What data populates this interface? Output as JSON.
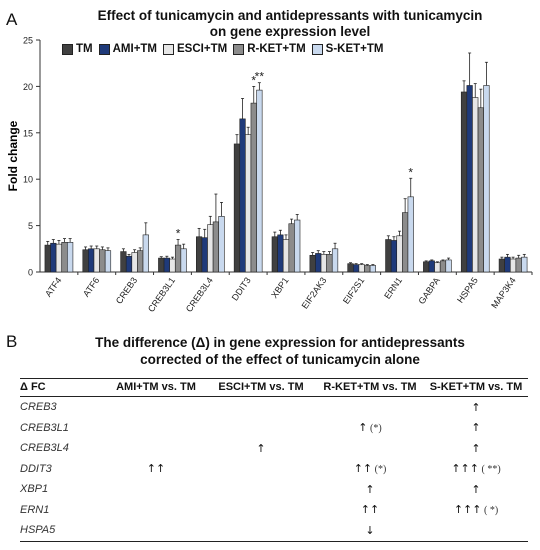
{
  "panel_a_label": "A",
  "panel_b_label": "B",
  "chart_data": {
    "type": "bar",
    "title": "Effect of tunicamycin and antidepressants with tunicamycin",
    "subtitle": "on gene expression level",
    "ylabel": "Fold change",
    "xlabel": "",
    "ylim": [
      0,
      25
    ],
    "yticks": [
      0,
      5,
      10,
      15,
      20,
      25
    ],
    "categories": [
      "ATF4",
      "ATF6",
      "CREB3",
      "CREB3L1",
      "CREB3L4",
      "DDIT3",
      "XBP1",
      "EIF2AK3",
      "EIF2S1",
      "ERN1",
      "GABPA",
      "HSPA5",
      "MAP3K4"
    ],
    "series": [
      {
        "name": "TM",
        "color": "#404040",
        "values": [
          2.9,
          2.4,
          2.2,
          1.5,
          3.8,
          13.8,
          3.8,
          1.8,
          0.9,
          3.5,
          1.1,
          19.4,
          1.4
        ],
        "errors": [
          0.4,
          0.3,
          0.3,
          0.15,
          0.9,
          1.0,
          0.5,
          0.3,
          0.1,
          0.4,
          0.1,
          1.2,
          0.2
        ]
      },
      {
        "name": "AMI+TM",
        "color": "#1f3a7a",
        "values": [
          3.1,
          2.5,
          1.7,
          1.5,
          3.7,
          16.5,
          4.0,
          2.0,
          0.8,
          3.4,
          1.2,
          20.1,
          1.6
        ],
        "errors": [
          0.4,
          0.3,
          0.2,
          0.2,
          0.9,
          2.2,
          0.5,
          0.3,
          0.1,
          0.4,
          0.1,
          3.5,
          0.3
        ]
      },
      {
        "name": "ESCI+TM",
        "color": "#e6e6e6",
        "values": [
          3.0,
          2.5,
          2.1,
          1.4,
          5.1,
          14.8,
          3.5,
          1.9,
          0.8,
          3.9,
          1.0,
          18.8,
          1.4
        ],
        "errors": [
          0.4,
          0.3,
          0.3,
          0.2,
          0.9,
          0.8,
          0.5,
          0.3,
          0.1,
          0.5,
          0.1,
          1.5,
          0.2
        ]
      },
      {
        "name": "R-KET+TM",
        "color": "#8c8c8c",
        "values": [
          3.2,
          2.4,
          2.3,
          2.9,
          5.4,
          18.2,
          5.2,
          1.9,
          0.7,
          6.4,
          1.2,
          17.7,
          1.5
        ],
        "errors": [
          0.4,
          0.3,
          0.3,
          0.6,
          3.0,
          1.8,
          0.5,
          0.3,
          0.1,
          1.5,
          0.1,
          2.0,
          0.3
        ]
      },
      {
        "name": "S-KET+TM",
        "color": "#c9d9ee",
        "values": [
          3.2,
          2.3,
          4.0,
          2.5,
          6.0,
          19.6,
          5.6,
          2.5,
          0.7,
          8.1,
          1.3,
          20.1,
          1.6
        ],
        "errors": [
          0.4,
          0.3,
          1.3,
          0.5,
          1.5,
          0.8,
          0.6,
          0.6,
          0.1,
          2.0,
          0.2,
          2.5,
          0.3
        ]
      }
    ],
    "annotations": [
      {
        "category": "CREB3L1",
        "series": "R-KET+TM",
        "text": "*"
      },
      {
        "category": "DDIT3",
        "series": "R-KET+TM",
        "text": "*"
      },
      {
        "category": "DDIT3",
        "series": "S-KET+TM",
        "text": "**"
      },
      {
        "category": "ERN1",
        "series": "S-KET+TM",
        "text": "*"
      }
    ],
    "legend_position": "top-left"
  },
  "table": {
    "title_line1": "The difference (Δ) in gene expression for antidepressants",
    "title_line2": "corrected of the effect of tunicamycin alone",
    "headers": [
      "Δ FC",
      "AMI+TM vs. TM",
      "ESCI+TM vs. TM",
      "R-KET+TM vs. TM",
      "S-KET+TM vs. TM"
    ],
    "rows": [
      {
        "gene": "CREB3",
        "cells": [
          {
            "arrow": "",
            "sig": ""
          },
          {
            "arrow": "",
            "sig": ""
          },
          {
            "arrow": "",
            "sig": ""
          },
          {
            "arrow": "↑",
            "sig": ""
          }
        ]
      },
      {
        "gene": "CREB3L1",
        "cells": [
          {
            "arrow": "",
            "sig": ""
          },
          {
            "arrow": "",
            "sig": ""
          },
          {
            "arrow": "↑",
            "sig": "(*)"
          },
          {
            "arrow": "↑",
            "sig": ""
          }
        ]
      },
      {
        "gene": "CREB3L4",
        "cells": [
          {
            "arrow": "",
            "sig": ""
          },
          {
            "arrow": "↑",
            "sig": ""
          },
          {
            "arrow": "",
            "sig": ""
          },
          {
            "arrow": "↑",
            "sig": ""
          }
        ]
      },
      {
        "gene": "DDIT3",
        "cells": [
          {
            "arrow": "↑↑",
            "sig": ""
          },
          {
            "arrow": "",
            "sig": ""
          },
          {
            "arrow": "↑↑",
            "sig": "(*)"
          },
          {
            "arrow": "↑↑↑",
            "sig": "( **)"
          }
        ]
      },
      {
        "gene": "XBP1",
        "cells": [
          {
            "arrow": "",
            "sig": ""
          },
          {
            "arrow": "",
            "sig": ""
          },
          {
            "arrow": "↑",
            "sig": ""
          },
          {
            "arrow": "↑",
            "sig": ""
          }
        ]
      },
      {
        "gene": "ERN1",
        "cells": [
          {
            "arrow": "",
            "sig": ""
          },
          {
            "arrow": "",
            "sig": ""
          },
          {
            "arrow": "↑↑",
            "sig": ""
          },
          {
            "arrow": "↑↑↑",
            "sig": "( *)"
          }
        ]
      },
      {
        "gene": "HSPA5",
        "cells": [
          {
            "arrow": "",
            "sig": ""
          },
          {
            "arrow": "",
            "sig": ""
          },
          {
            "arrow": "↓",
            "sig": ""
          },
          {
            "arrow": "",
            "sig": ""
          }
        ]
      }
    ]
  }
}
